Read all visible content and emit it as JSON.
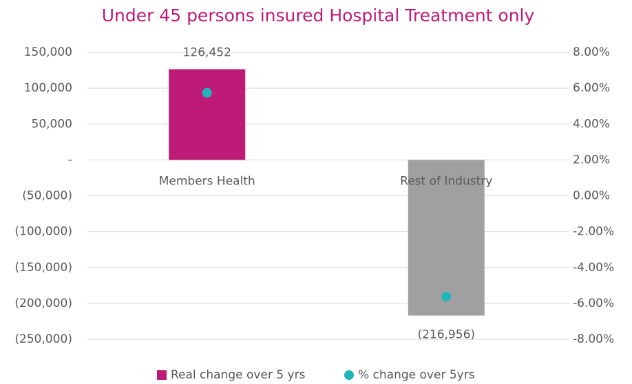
{
  "chart_data": {
    "type": "bar",
    "title": "Under 45 persons insured Hospital Treatment only",
    "categories": [
      "Members Health",
      "Rest of Industry"
    ],
    "series": [
      {
        "name": "Real change over 5 yrs",
        "type": "bar",
        "color": "#be1a78",
        "colors": [
          "#be1a78",
          "#a0a0a0"
        ],
        "values": [
          126452,
          -216956
        ],
        "value_labels": [
          "126,452",
          "(216,956)"
        ]
      },
      {
        "name": "% change over 5yrs",
        "type": "scatter",
        "axis": "y2",
        "color": "#1fb5bd",
        "values": [
          5.74,
          -5.62
        ]
      }
    ],
    "ylim": [
      -250000,
      150000
    ],
    "yticks": [
      {
        "value": 150000,
        "label": "150,000"
      },
      {
        "value": 100000,
        "label": "100,000"
      },
      {
        "value": 50000,
        "label": "50,000"
      },
      {
        "value": 0,
        "label": "-"
      },
      {
        "value": -50000,
        "label": "(50,000)"
      },
      {
        "value": -100000,
        "label": "(100,000)"
      },
      {
        "value": -150000,
        "label": "(150,000)"
      },
      {
        "value": -200000,
        "label": "(200,000)"
      },
      {
        "value": -250000,
        "label": "(250,000)"
      }
    ],
    "y2lim": [
      -8,
      8
    ],
    "y2ticks": [
      {
        "value": 8,
        "label": "8.00%"
      },
      {
        "value": 6,
        "label": "6.00%"
      },
      {
        "value": 4,
        "label": "4.00%"
      },
      {
        "value": 2,
        "label": "2.00%"
      },
      {
        "value": 0,
        "label": "0.00%"
      },
      {
        "value": -2,
        "label": "-2.00%"
      },
      {
        "value": -4,
        "label": "-4.00%"
      },
      {
        "value": -6,
        "label": "-6.00%"
      },
      {
        "value": -8,
        "label": "-8.00%"
      }
    ],
    "grid": true,
    "legend": "bottom"
  }
}
